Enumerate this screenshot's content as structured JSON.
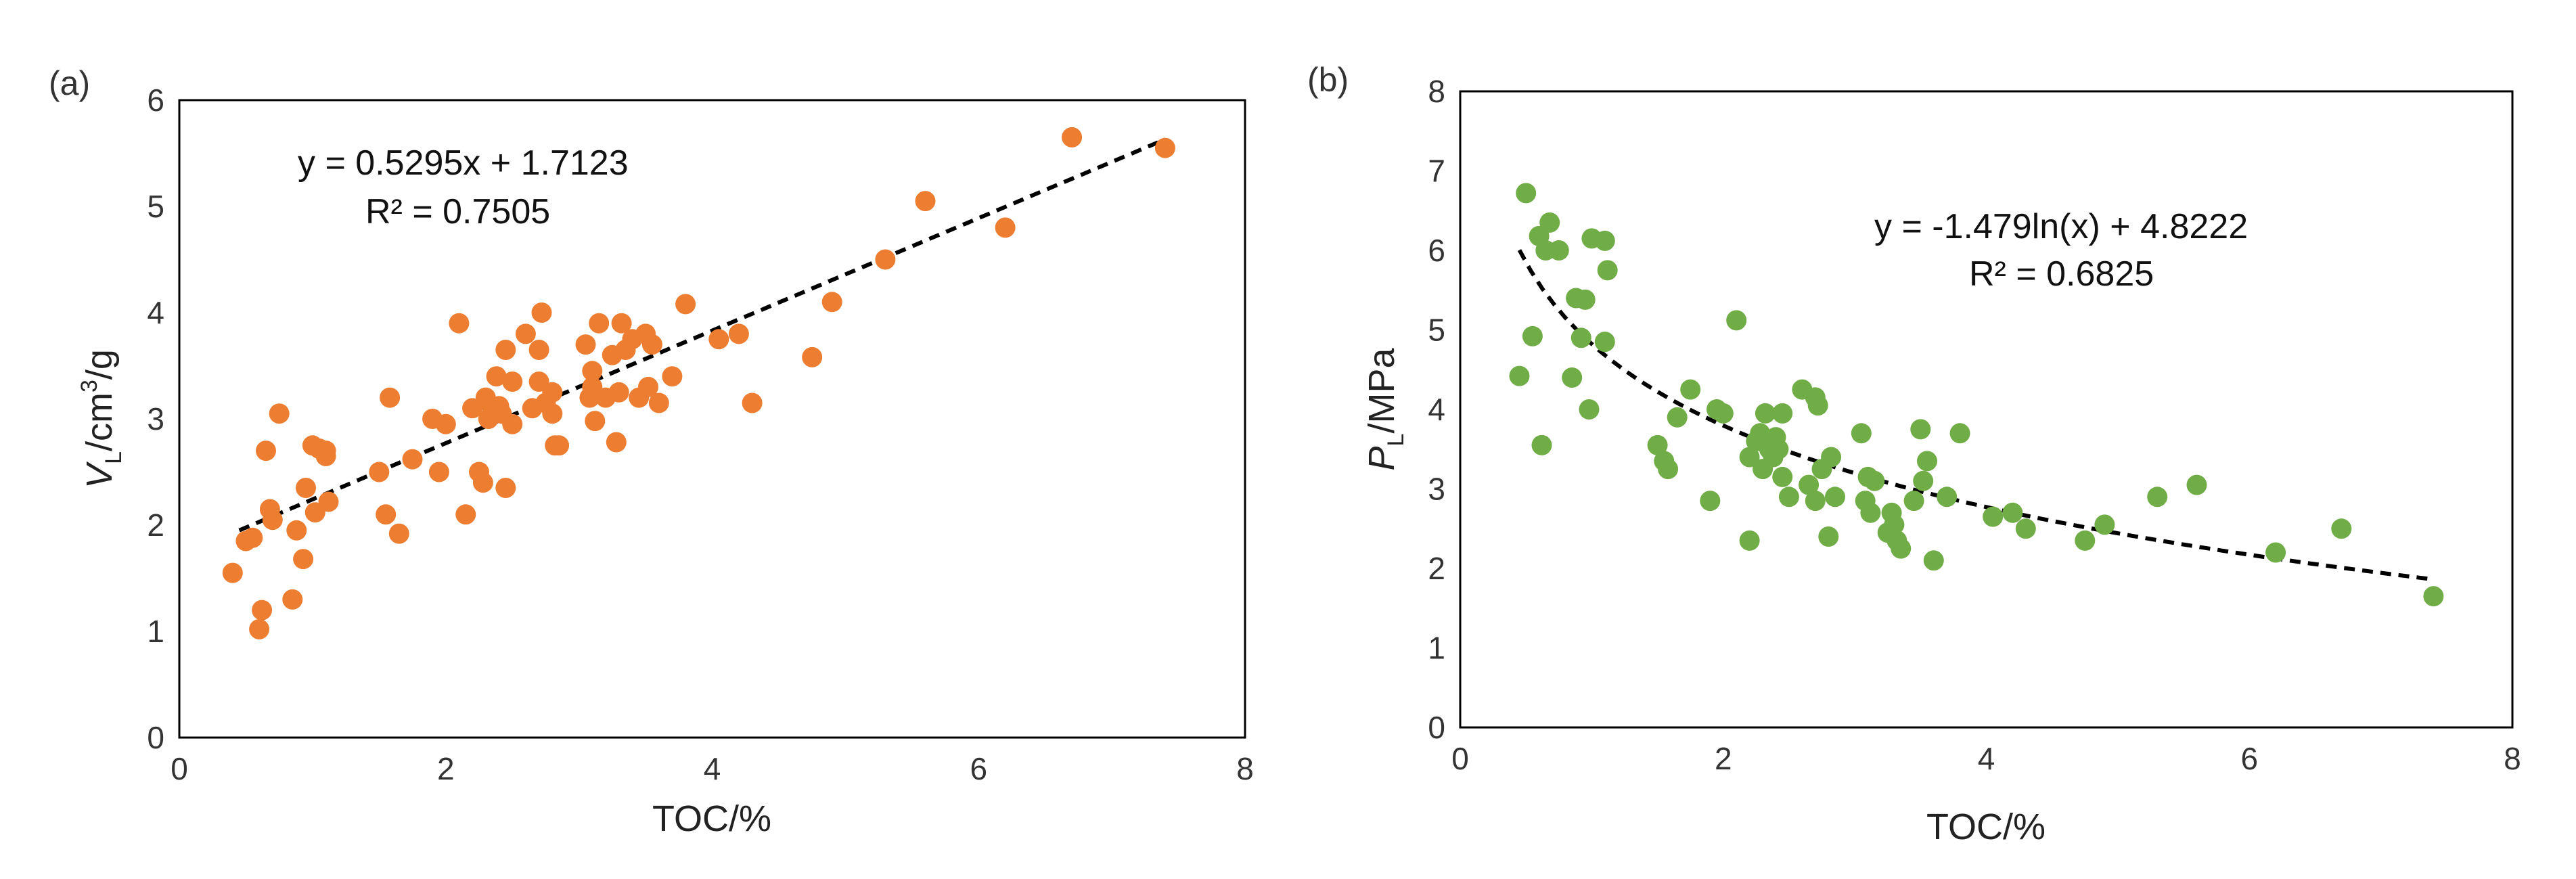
{
  "chart_data": [
    {
      "type": "scatter",
      "panel_label": "(a)",
      "title": "",
      "xlabel": "TOC/%",
      "ylabel_main": "V",
      "ylabel_sub": "L",
      "ylabel_unit_pre": "/cm",
      "ylabel_sup": "3",
      "ylabel_unit_post": "/g",
      "xlim": [
        0,
        8
      ],
      "ylim": [
        0,
        6
      ],
      "xticks": [
        0,
        2,
        4,
        6,
        8
      ],
      "yticks": [
        0,
        1,
        2,
        3,
        4,
        5,
        6
      ],
      "grid": false,
      "marker_color": "#ED7D31",
      "trendline": {
        "kind": "linear",
        "slope": 0.5295,
        "intercept": 1.7123,
        "x_from": 0.45,
        "x_to": 7.4
      },
      "equation": "y = 0.5295x + 1.7123",
      "r_squared": "R² = 0.7505",
      "x": [
        0.4,
        0.5,
        0.55,
        0.6,
        0.62,
        0.65,
        0.68,
        0.7,
        0.75,
        0.85,
        0.88,
        0.93,
        0.95,
        1.0,
        1.02,
        1.05,
        1.1,
        1.1,
        1.12,
        1.5,
        1.55,
        1.58,
        1.65,
        1.75,
        1.9,
        1.95,
        2.0,
        2.1,
        2.15,
        2.2,
        2.25,
        2.28,
        2.3,
        2.32,
        2.35,
        2.38,
        2.4,
        2.42,
        2.45,
        2.45,
        2.5,
        2.5,
        2.6,
        2.65,
        2.7,
        2.7,
        2.72,
        2.75,
        2.8,
        2.8,
        2.82,
        2.85,
        3.05,
        3.08,
        3.1,
        3.1,
        3.12,
        3.15,
        3.2,
        3.25,
        3.28,
        3.3,
        3.32,
        3.35,
        3.4,
        3.45,
        3.5,
        3.52,
        3.55,
        3.6,
        3.7,
        3.8,
        4.05,
        4.2,
        4.3,
        4.75,
        4.9,
        5.3,
        5.6,
        6.2,
        6.7,
        7.4
      ],
      "y": [
        1.55,
        1.85,
        1.88,
        1.02,
        1.2,
        2.7,
        2.15,
        2.05,
        3.05,
        1.3,
        1.95,
        1.68,
        2.35,
        2.75,
        2.12,
        2.72,
        2.65,
        2.7,
        2.22,
        2.5,
        2.1,
        3.2,
        1.92,
        2.62,
        3.0,
        2.5,
        2.95,
        3.9,
        2.1,
        3.1,
        2.5,
        2.4,
        3.2,
        3.0,
        3.1,
        3.4,
        3.12,
        3.05,
        3.65,
        2.35,
        3.35,
        2.95,
        3.8,
        3.1,
        3.65,
        3.35,
        4.0,
        3.15,
        3.25,
        3.05,
        2.75,
        2.75,
        3.7,
        3.2,
        3.45,
        3.3,
        2.98,
        3.9,
        3.2,
        3.6,
        2.78,
        3.25,
        3.9,
        3.65,
        3.75,
        3.2,
        3.8,
        3.3,
        3.7,
        3.15,
        3.4,
        4.08,
        3.75,
        3.8,
        3.15,
        3.58,
        4.1,
        4.5,
        5.05,
        4.8,
        5.65,
        5.55
      ]
    },
    {
      "type": "scatter",
      "panel_label": "(b)",
      "title": "",
      "xlabel": "TOC/%",
      "ylabel_main": "P",
      "ylabel_sub": "L",
      "ylabel_unit_pre": "/MPa",
      "ylabel_sup": "",
      "ylabel_unit_post": "",
      "xlim": [
        0,
        8
      ],
      "ylim": [
        0,
        8
      ],
      "xticks": [
        0,
        2,
        4,
        6,
        8
      ],
      "yticks": [
        0,
        1,
        2,
        3,
        4,
        5,
        6,
        7,
        8
      ],
      "grid": false,
      "marker_color": "#70AD47",
      "trendline": {
        "kind": "log",
        "a": -1.479,
        "b": 4.8222,
        "x_from": 0.45,
        "x_to": 7.4
      },
      "equation": "y = -1.479ln(x) + 4.8222",
      "r_squared": "R² = 0.6825",
      "x": [
        0.45,
        0.5,
        0.55,
        0.6,
        0.62,
        0.65,
        0.68,
        0.75,
        0.85,
        0.88,
        0.92,
        0.95,
        0.98,
        1.0,
        1.1,
        1.1,
        1.12,
        1.5,
        1.55,
        1.58,
        1.65,
        1.75,
        1.9,
        1.95,
        2.0,
        2.1,
        2.2,
        2.2,
        2.25,
        2.28,
        2.3,
        2.32,
        2.35,
        2.38,
        2.4,
        2.42,
        2.45,
        2.45,
        2.5,
        2.6,
        2.65,
        2.7,
        2.7,
        2.72,
        2.75,
        2.8,
        2.82,
        2.85,
        3.05,
        3.08,
        3.1,
        3.12,
        3.15,
        3.25,
        3.28,
        3.3,
        3.32,
        3.35,
        3.45,
        3.5,
        3.52,
        3.55,
        3.6,
        3.7,
        3.8,
        4.05,
        4.2,
        4.3,
        4.75,
        4.9,
        5.3,
        5.6,
        6.2,
        6.7,
        7.4
      ],
      "y": [
        4.42,
        6.72,
        4.92,
        6.18,
        3.55,
        6.0,
        6.35,
        6.0,
        4.4,
        5.4,
        4.9,
        5.38,
        4.0,
        6.15,
        6.12,
        4.85,
        5.75,
        3.55,
        3.35,
        3.25,
        3.9,
        4.25,
        2.85,
        4.0,
        3.95,
        5.12,
        3.4,
        2.35,
        3.6,
        3.7,
        3.25,
        3.95,
        3.5,
        3.4,
        3.65,
        3.5,
        3.95,
        3.15,
        2.9,
        4.25,
        3.05,
        4.15,
        2.85,
        4.05,
        3.25,
        2.4,
        3.4,
        2.9,
        3.7,
        2.85,
        3.15,
        2.7,
        3.1,
        2.45,
        2.7,
        2.55,
        2.35,
        2.25,
        2.85,
        3.75,
        3.1,
        3.35,
        2.1,
        2.9,
        3.7,
        2.65,
        2.7,
        2.5,
        2.35,
        2.55,
        2.9,
        3.05,
        2.2,
        2.5,
        1.65
      ]
    }
  ]
}
